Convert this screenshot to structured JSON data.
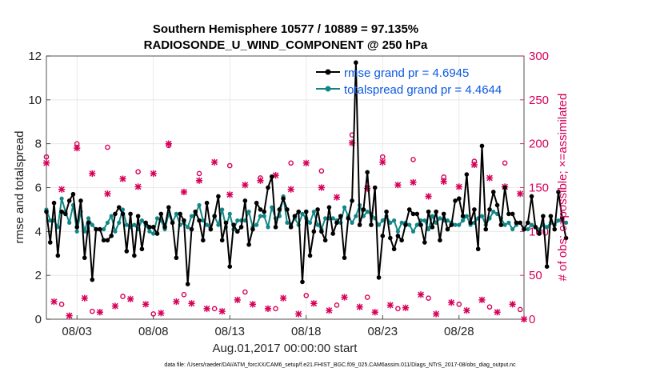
{
  "colors": {
    "rmse": "#000000",
    "spread": "#128686",
    "obs": "#d6005a",
    "legend_text": "#0b57e3",
    "grid": "#e3e3e3"
  },
  "footer": "data file: /Users/raeder/DAI/ATM_forcXX/CAM6_setup/f.e21.FHIST_BGC.f09_025.CAM6assim.011/Diags_NTrS_2017-08/obs_diag_output.nc",
  "chart_data": {
    "type": "line",
    "title": "Southern Hemisphere 10577 / 10889 = 97.135%",
    "subtitle": "RADIOSONDE_U_WIND_COMPONENT @ 250 hPa",
    "xlabel": "Aug.01,2017 00:00:00 start",
    "ylabel_left": "rmse and totalspread",
    "ylabel_right": "# of obs: o=possible; ×=assimilated",
    "ylim_left": [
      0,
      12
    ],
    "ylim_right": [
      0,
      300
    ],
    "yticks_left": [
      "0",
      "2",
      "4",
      "6",
      "8",
      "10",
      "12"
    ],
    "yticks_right": [
      "0",
      "50",
      "100",
      "150",
      "200",
      "250",
      "300"
    ],
    "xlim_days": [
      1,
      32.25
    ],
    "xticks": [
      {
        "day": 3,
        "label": "08/03"
      },
      {
        "day": 8,
        "label": "08/08"
      },
      {
        "day": 13,
        "label": "08/13"
      },
      {
        "day": 18,
        "label": "08/18"
      },
      {
        "day": 23,
        "label": "08/23"
      },
      {
        "day": 28,
        "label": "08/28"
      }
    ],
    "legend": [
      "rmse grand pr = 4.6945",
      "totalspread grand pr = 4.4644"
    ],
    "start_day": 1.0,
    "step_days": 0.25,
    "series": [
      {
        "name": "rmse",
        "values": [
          4.9,
          3.5,
          5.3,
          2.9,
          4.9,
          4.8,
          5.4,
          5.7,
          4.2,
          5.4,
          2.8,
          4.4,
          1.8,
          4.1,
          4.1,
          3.6,
          3.6,
          3.8,
          4.8,
          5.1,
          4.8,
          3.1,
          4.8,
          2.9,
          4.7,
          3.2,
          4.4,
          4.2,
          4.2,
          3.9,
          4.8,
          4.2,
          5.1,
          4.4,
          2.8,
          4.8,
          4.5,
          1.6,
          4.1,
          4.9,
          4.5,
          3.6,
          5.3,
          4.1,
          4.7,
          5.6,
          3.6,
          4.4,
          2.4,
          4.3,
          4.0,
          4.2,
          5.4,
          3.4,
          4.1,
          5.3,
          5.0,
          4.9,
          6.0,
          6.5,
          4.2,
          5.0,
          5.5,
          5.0,
          4.2,
          4.7,
          4.9,
          1.7,
          4.9,
          2.9,
          4.0,
          5.0,
          4.0,
          3.6,
          5.1,
          3.9,
          4.4,
          4.7,
          2.8,
          4.6,
          5.4,
          11.7,
          4.3,
          5.0,
          6.7,
          4.3,
          6.0,
          1.9,
          3.8,
          4.9,
          3.7,
          3.2,
          3.8,
          3.6,
          4.3,
          5.0,
          4.8,
          4.8,
          4.3,
          3.5,
          4.9,
          4.2,
          4.9,
          3.6,
          4.8,
          4.1,
          4.3,
          5.4,
          5.5,
          4.7,
          6.6,
          4.4,
          5.0,
          3.2,
          7.9,
          4.1,
          5.0,
          5.8,
          5.2,
          4.3,
          6.0,
          4.8,
          4.8,
          4.4,
          4.4,
          4.1,
          4.4,
          5.6,
          4.2,
          3.9,
          4.7,
          2.4,
          4.7,
          4.1,
          5.8,
          4.6,
          3.7
        ]
      },
      {
        "name": "totalspread",
        "values": [
          5.0,
          4.5,
          4.5,
          4.2,
          5.5,
          4.9,
          4.4,
          5.2,
          4.0,
          4.9,
          4.0,
          4.6,
          4.3,
          4.1,
          4.1,
          4.1,
          4.4,
          4.7,
          4.0,
          4.4,
          5.0,
          4.3,
          4.2,
          4.3,
          4.1,
          4.5,
          4.3,
          4.0,
          3.9,
          4.6,
          4.5,
          4.1,
          4.8,
          4.4,
          4.8,
          4.3,
          4.4,
          4.2,
          4.7,
          4.8,
          5.2,
          4.5,
          4.3,
          4.1,
          4.7,
          4.3,
          5.0,
          4.2,
          4.8,
          4.1,
          4.5,
          4.5,
          4.5,
          4.9,
          4.2,
          4.3,
          4.7,
          4.7,
          4.2,
          5.1,
          4.6,
          4.7,
          5.6,
          4.4,
          4.3,
          4.6,
          4.3,
          4.8,
          4.6,
          4.4,
          4.9,
          4.3,
          4.1,
          4.6,
          4.6,
          4.6,
          4.5,
          4.4,
          5.1,
          4.7,
          4.4,
          4.7,
          5.2,
          4.7,
          4.9,
          4.8,
          4.6,
          4.3,
          4.5,
          4.7,
          4.4,
          4.5,
          4.0,
          4.4,
          4.4,
          4.3,
          4.0,
          4.3,
          4.5,
          4.5,
          4.1,
          4.7,
          4.4,
          4.6,
          4.5,
          4.5,
          4.4,
          4.3,
          4.3,
          4.5,
          4.7,
          4.3,
          4.4,
          4.6,
          4.7,
          4.3,
          4.6,
          4.9,
          4.8,
          4.6,
          4.3,
          4.4,
          4.1,
          4.3,
          4.4,
          4.1,
          4.1,
          4.3,
          4.2,
          4.1,
          4.3,
          4.2,
          4.4,
          4.3,
          4.5,
          4.5,
          4.4
        ]
      },
      {
        "name": "obs_possible",
        "points": [
          [
            1.0,
            185
          ],
          [
            2.0,
            17
          ],
          [
            3.0,
            200
          ],
          [
            4.0,
            9
          ],
          [
            5.0,
            196
          ],
          [
            6.0,
            26
          ],
          [
            7.0,
            168
          ],
          [
            8.0,
            6
          ],
          [
            9.0,
            198
          ],
          [
            10.0,
            28
          ],
          [
            11.0,
            166
          ],
          [
            12.0,
            12
          ],
          [
            13.0,
            175
          ],
          [
            14.0,
            31
          ],
          [
            15.0,
            161
          ],
          [
            16.0,
            12
          ],
          [
            17.0,
            178
          ],
          [
            18.0,
            27
          ],
          [
            19.0,
            169
          ],
          [
            20.0,
            16
          ],
          [
            21.0,
            210
          ],
          [
            22.0,
            25
          ],
          [
            23.0,
            185
          ],
          [
            24.0,
            12
          ],
          [
            25.0,
            182
          ],
          [
            26.0,
            24
          ],
          [
            27.0,
            162
          ],
          [
            28.0,
            17
          ],
          [
            29.0,
            180
          ],
          [
            30.0,
            14
          ],
          [
            31.0,
            178
          ],
          [
            32.0,
            11
          ]
        ]
      },
      {
        "name": "obs_assimilated",
        "points": [
          [
            1.0,
            178
          ],
          [
            1.5,
            20
          ],
          [
            2.0,
            148
          ],
          [
            2.5,
            4
          ],
          [
            3.0,
            195
          ],
          [
            3.5,
            24
          ],
          [
            4.0,
            166
          ],
          [
            4.5,
            8
          ],
          [
            5.0,
            143
          ],
          [
            5.5,
            15
          ],
          [
            6.0,
            160
          ],
          [
            6.5,
            23
          ],
          [
            7.0,
            151
          ],
          [
            7.5,
            17
          ],
          [
            8.0,
            166
          ],
          [
            8.5,
            7
          ],
          [
            9.0,
            200
          ],
          [
            9.5,
            20
          ],
          [
            10.0,
            145
          ],
          [
            10.5,
            18
          ],
          [
            11.0,
            158
          ],
          [
            11.5,
            12
          ],
          [
            12.0,
            179
          ],
          [
            12.5,
            9
          ],
          [
            13.0,
            142
          ],
          [
            13.5,
            22
          ],
          [
            14.0,
            153
          ],
          [
            14.5,
            17
          ],
          [
            15.0,
            158
          ],
          [
            15.5,
            12
          ],
          [
            16.0,
            164
          ],
          [
            16.5,
            24
          ],
          [
            17.0,
            148
          ],
          [
            17.5,
            6
          ],
          [
            18.0,
            178
          ],
          [
            18.5,
            18
          ],
          [
            19.0,
            150
          ],
          [
            19.5,
            10
          ],
          [
            20.0,
            139
          ],
          [
            20.5,
            25
          ],
          [
            21.0,
            201
          ],
          [
            21.5,
            14
          ],
          [
            22.0,
            149
          ],
          [
            22.5,
            8
          ],
          [
            23.0,
            179
          ],
          [
            23.5,
            16
          ],
          [
            24.0,
            153
          ],
          [
            24.5,
            13
          ],
          [
            25.0,
            156
          ],
          [
            25.5,
            28
          ],
          [
            26.0,
            140
          ],
          [
            26.5,
            6
          ],
          [
            27.0,
            157
          ],
          [
            27.5,
            19
          ],
          [
            28.0,
            151
          ],
          [
            28.5,
            10
          ],
          [
            29.0,
            176
          ],
          [
            29.5,
            22
          ],
          [
            30.0,
            161
          ],
          [
            30.5,
            8
          ],
          [
            31.0,
            151
          ],
          [
            31.5,
            17
          ],
          [
            32.0,
            143
          ],
          [
            32.25,
            0
          ]
        ]
      }
    ]
  }
}
